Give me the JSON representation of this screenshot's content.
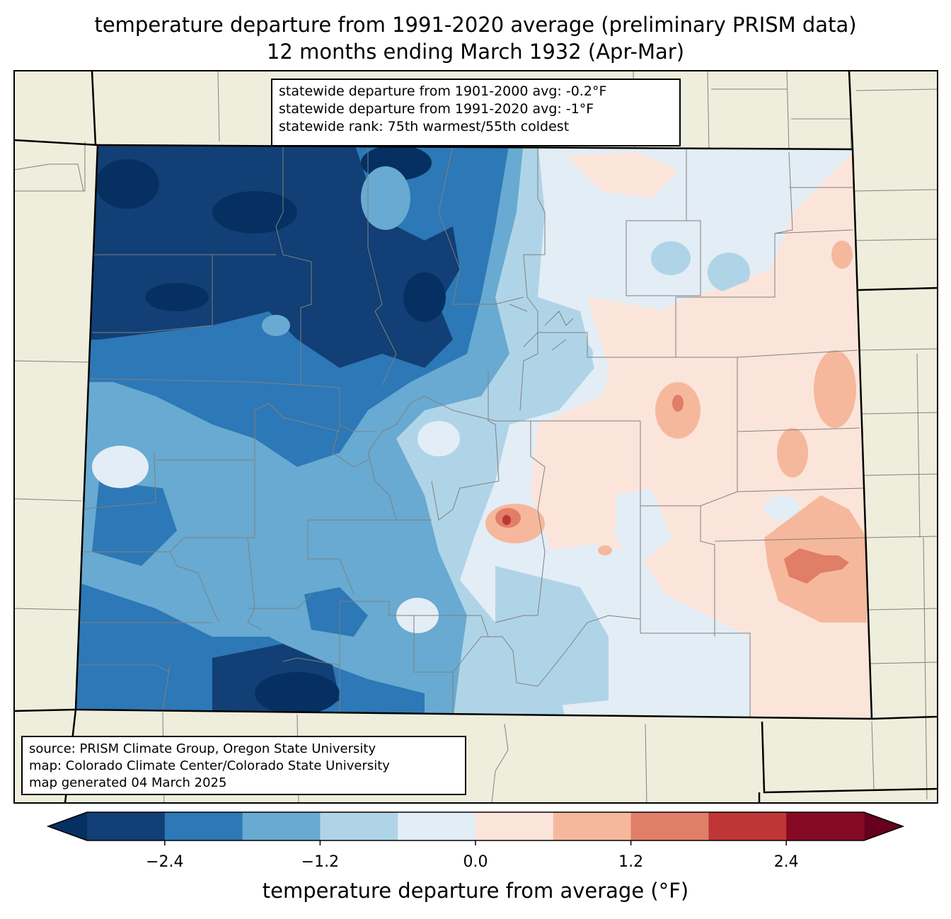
{
  "title": {
    "line1": "temperature departure from 1991-2020 average (preliminary PRISM data)",
    "line2": "12 months ending March 1932 (Apr-Mar)"
  },
  "stats": {
    "line1": "statewide departure from 1901-2000 avg: -0.2°F",
    "line2": "statewide departure from 1991-2020 avg: -1°F",
    "line3": "statewide rank: 75th warmest/55th coldest"
  },
  "source": {
    "line1": "source: PRISM Climate Group, Oregon State University",
    "line2": "map: Colorado Climate Center/Colorado State University",
    "line3": "map generated 04 March 2025"
  },
  "colorbar": {
    "label": "temperature departure from average (°F)",
    "levels": [
      -3.0,
      -2.4,
      -1.8,
      -1.2,
      -0.6,
      0.0,
      0.6,
      1.2,
      1.8,
      2.4,
      3.0
    ],
    "colors": [
      "#123f75",
      "#2d78b6",
      "#68aad1",
      "#b0d4e7",
      "#e3edf5",
      "#fbe5db",
      "#f6b89c",
      "#e07e68",
      "#c03538",
      "#870a24"
    ],
    "under_color": "#053061",
    "over_color": "#67001f",
    "ticks": [
      {
        "value": -2.4,
        "label": "−2.4"
      },
      {
        "value": -1.2,
        "label": "−1.2"
      },
      {
        "value": 0.0,
        "label": "0.0"
      },
      {
        "value": 1.2,
        "label": "1.2"
      },
      {
        "value": 2.4,
        "label": "2.4"
      }
    ]
  },
  "colors": {
    "land": "#efeedc",
    "state_border": "#000000",
    "county_border": "#808080"
  }
}
